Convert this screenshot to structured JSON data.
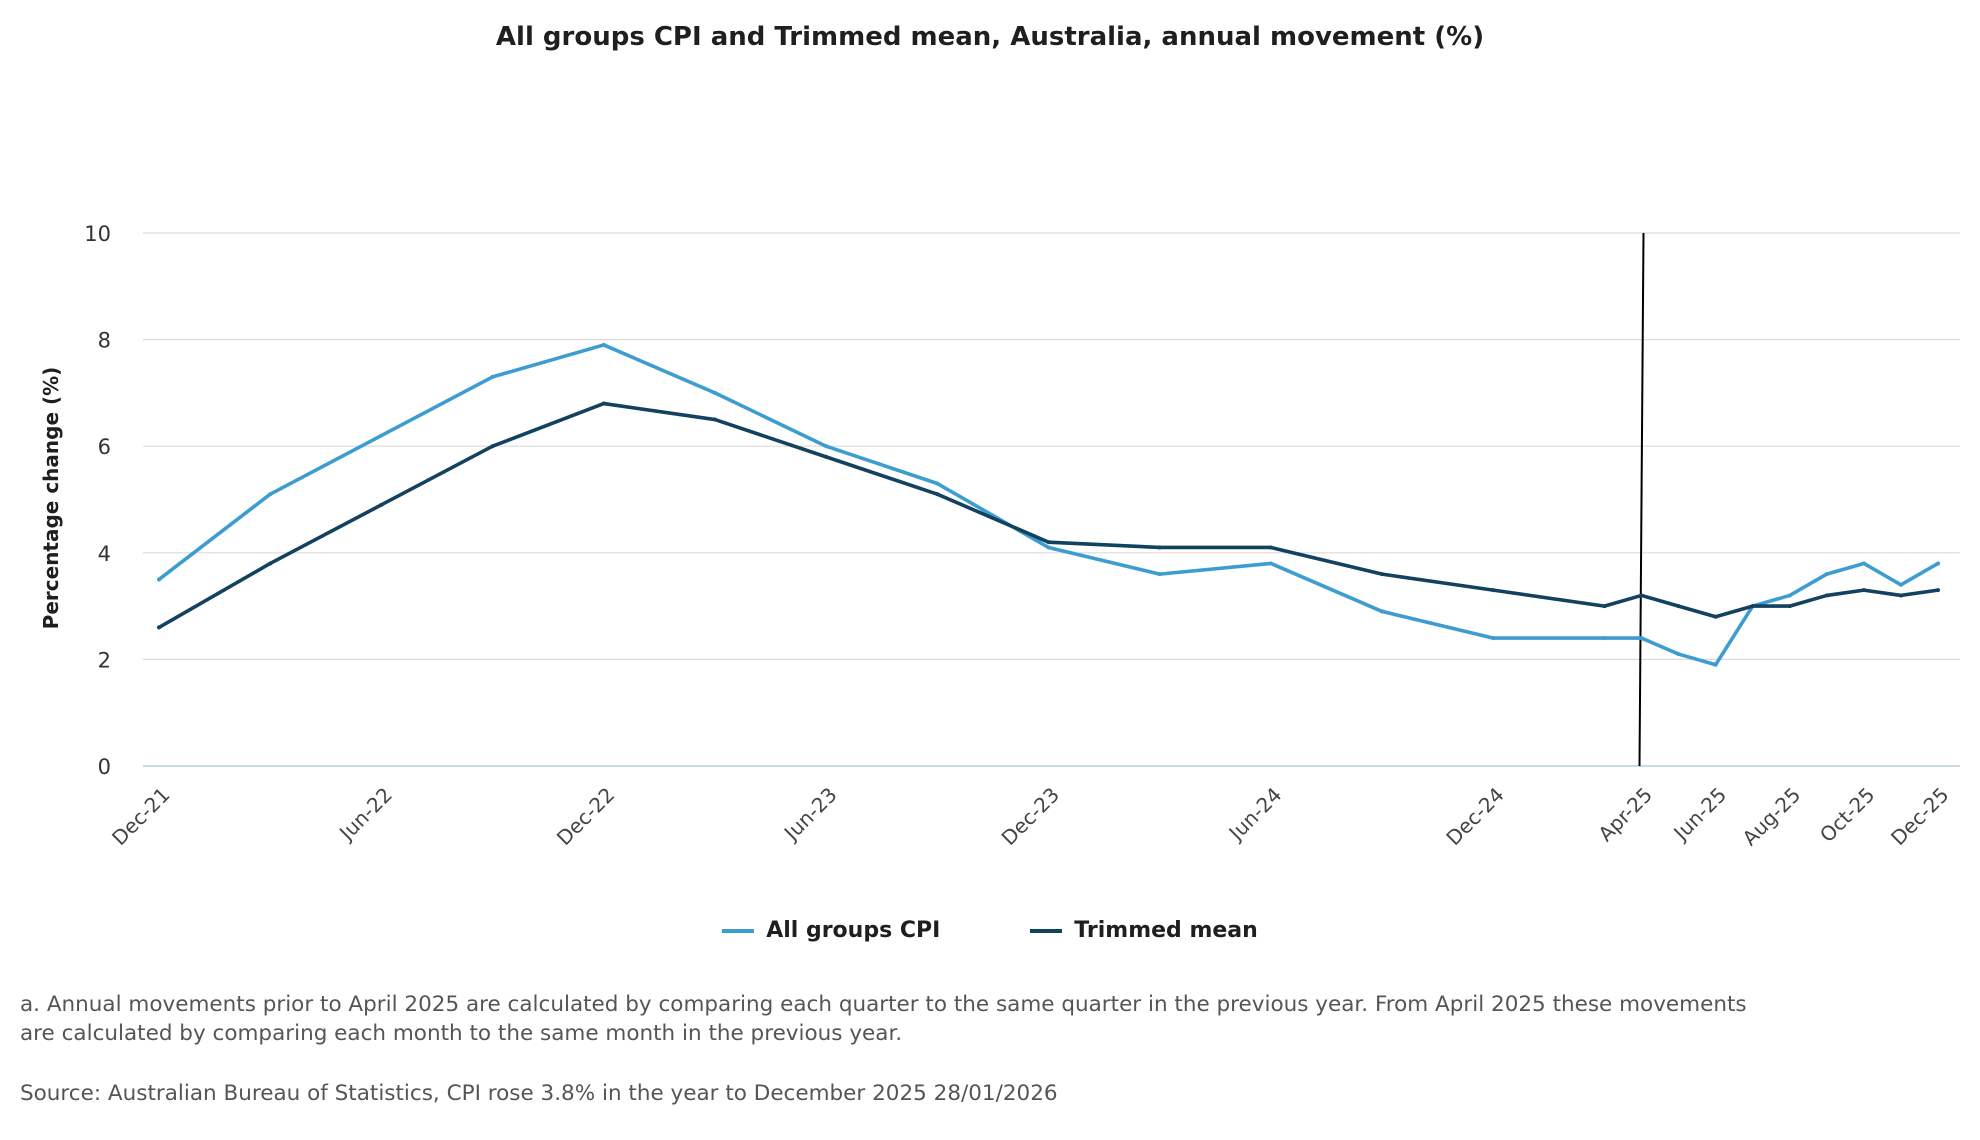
{
  "chart_data": {
    "type": "line",
    "title": "All groups CPI and Trimmed mean, Australia, annual movement (%)",
    "xlabel": "",
    "ylabel": "Percentage change (%)",
    "ylim": [
      0,
      10
    ],
    "yticks": [
      0,
      2,
      4,
      6,
      8,
      10
    ],
    "grid": true,
    "legend_position": "bottom-center",
    "x": [
      "Dec-21",
      "Mar-22",
      "Jun-22",
      "Sep-22",
      "Dec-22",
      "Mar-23",
      "Jun-23",
      "Sep-23",
      "Dec-23",
      "Mar-24",
      "Jun-24",
      "Sep-24",
      "Dec-24",
      "Mar-25",
      "Apr-25",
      "May-25",
      "Jun-25",
      "Jul-25",
      "Aug-25",
      "Sep-25",
      "Oct-25",
      "Nov-25",
      "Dec-25"
    ],
    "x_index": [
      0,
      3,
      6,
      9,
      12,
      15,
      18,
      21,
      24,
      27,
      30,
      33,
      36,
      39,
      40,
      41,
      42,
      43,
      44,
      45,
      46,
      47,
      48
    ],
    "tick_labels": [
      {
        "label": "Dec-21",
        "index": 0
      },
      {
        "label": "Jun-22",
        "index": 6
      },
      {
        "label": "Dec-22",
        "index": 12
      },
      {
        "label": "Jun-23",
        "index": 18
      },
      {
        "label": "Dec-23",
        "index": 24
      },
      {
        "label": "Jun-24",
        "index": 30
      },
      {
        "label": "Dec-24",
        "index": 36
      },
      {
        "label": "Apr-25",
        "index": 40
      },
      {
        "label": "Jun-25",
        "index": 42
      },
      {
        "label": "Aug-25",
        "index": 44
      },
      {
        "label": "Oct-25",
        "index": 46
      },
      {
        "label": "Dec-25",
        "index": 48
      }
    ],
    "series": [
      {
        "name": "All groups CPI",
        "color": "#3d9dd1",
        "values": [
          3.5,
          5.1,
          6.2,
          7.3,
          7.9,
          7.0,
          6.0,
          5.3,
          4.1,
          3.6,
          3.8,
          2.9,
          2.4,
          2.4,
          2.4,
          2.1,
          1.9,
          3.0,
          3.2,
          3.6,
          3.8,
          3.4,
          3.8
        ]
      },
      {
        "name": "Trimmed mean",
        "color": "#12425f",
        "values": [
          2.6,
          3.8,
          4.9,
          6.0,
          6.8,
          6.5,
          5.8,
          5.1,
          4.2,
          4.1,
          4.1,
          3.6,
          3.3,
          3.0,
          3.2,
          3.0,
          2.8,
          3.0,
          3.0,
          3.2,
          3.3,
          3.2,
          3.3
        ]
      }
    ],
    "annotations": [
      {
        "type": "vertical-line",
        "at": "Apr-25",
        "color": "#000000"
      }
    ]
  },
  "legend": {
    "items": [
      {
        "label": "All groups CPI",
        "color": "#3d9dd1"
      },
      {
        "label": "Trimmed mean",
        "color": "#12425f"
      }
    ]
  },
  "footnote": "a. Annual movements prior to April 2025 are calculated by comparing each quarter to the same quarter in the previous year. From April 2025 these movements are calculated by comparing each month to the same month in the previous year.",
  "source": "Source: Australian Bureau of Statistics, CPI rose 3.8% in the year to December 2025 28/01/2026"
}
